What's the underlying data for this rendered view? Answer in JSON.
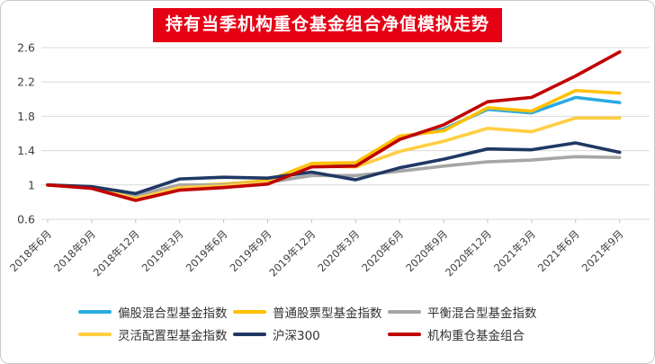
{
  "title": "持有当季机构重仓基金组合净值模拟走势",
  "colors": {
    "banner_bg": "#e60014",
    "banner_text": "#ffffff",
    "gridline": "#d9d9d9",
    "axis_text": "#404040",
    "card_border": "#c9c9c9"
  },
  "chart_data": {
    "type": "line",
    "title": "持有当季机构重仓基金组合净值模拟走势",
    "categories": [
      "2018年6月",
      "2018年9月",
      "2018年12月",
      "2019年3月",
      "2019年6月",
      "2019年9月",
      "2019年12月",
      "2020年3月",
      "2020年6月",
      "2020年9月",
      "2020年12月",
      "2021年3月",
      "2021年6月",
      "2021年9月"
    ],
    "series": [
      {
        "name": "偏股混合型基金指数",
        "color": "#29abe2",
        "values": [
          1.0,
          0.97,
          0.86,
          0.98,
          1.0,
          1.04,
          1.23,
          1.24,
          1.55,
          1.65,
          1.88,
          1.84,
          2.02,
          1.96
        ]
      },
      {
        "name": "普通股票型基金指数",
        "color": "#ffc000",
        "values": [
          1.0,
          0.97,
          0.85,
          0.99,
          1.01,
          1.05,
          1.25,
          1.26,
          1.57,
          1.63,
          1.9,
          1.86,
          2.1,
          2.07
        ]
      },
      {
        "name": "平衡混合型基金指数",
        "color": "#a6a6a6",
        "values": [
          1.0,
          0.98,
          0.88,
          1.0,
          1.0,
          1.03,
          1.11,
          1.11,
          1.16,
          1.22,
          1.27,
          1.29,
          1.33,
          1.32
        ]
      },
      {
        "name": "灵活配置型基金指数",
        "color": "#ffce42",
        "values": [
          1.0,
          0.97,
          0.84,
          0.97,
          0.99,
          1.03,
          1.22,
          1.21,
          1.39,
          1.51,
          1.66,
          1.62,
          1.78,
          1.78
        ]
      },
      {
        "name": "沪深300",
        "color": "#203864",
        "values": [
          1.0,
          0.98,
          0.9,
          1.07,
          1.09,
          1.08,
          1.15,
          1.06,
          1.2,
          1.3,
          1.42,
          1.41,
          1.49,
          1.38
        ]
      },
      {
        "name": "机构重仓基金组合",
        "color": "#c00000",
        "values": [
          1.0,
          0.96,
          0.82,
          0.94,
          0.97,
          1.01,
          1.21,
          1.22,
          1.53,
          1.7,
          1.97,
          2.02,
          2.27,
          2.55
        ]
      }
    ],
    "ylim": [
      0.6,
      2.6
    ],
    "yticks": [
      0.6,
      1,
      1.4,
      1.8,
      2.2,
      2.6
    ],
    "xlabel": "",
    "ylabel": "",
    "grid": "horizontal",
    "legend_position": "bottom",
    "x_tick_rotation": -45
  }
}
